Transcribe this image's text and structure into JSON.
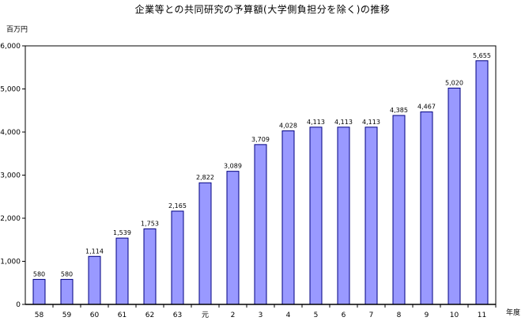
{
  "chart_data": {
    "type": "bar",
    "title": "企業等との共同研究の予算額(大学側負担分を除く)の推移",
    "ylabel": "百万円",
    "xlabel": "年度",
    "categories": [
      "58",
      "59",
      "60",
      "61",
      "62",
      "63",
      "元",
      "2",
      "3",
      "4",
      "5",
      "6",
      "7",
      "8",
      "9",
      "10",
      "11"
    ],
    "values": [
      580,
      580,
      1114,
      1539,
      1753,
      2165,
      2822,
      3089,
      3709,
      4028,
      4113,
      4113,
      4113,
      4385,
      4467,
      5020,
      5655
    ],
    "value_labels": [
      "580",
      "580",
      "1,114",
      "1,539",
      "1,753",
      "2,165",
      "2,822",
      "3,089",
      "3,709",
      "4,028",
      "4,113",
      "4,113",
      "4,113",
      "4,385",
      "4,467",
      "5,020",
      "5,655"
    ],
    "ylim": [
      0,
      6000
    ],
    "yticks": [
      0,
      1000,
      2000,
      3000,
      4000,
      5000,
      6000
    ],
    "ytick_labels": [
      "0",
      "1,000",
      "2,000",
      "3,000",
      "4,000",
      "5,000",
      "6,000"
    ],
    "grid": false,
    "legend": "none",
    "colors": {
      "bar_fill": "#9999ff",
      "bar_stroke": "#000080",
      "axis": "#000000"
    }
  }
}
